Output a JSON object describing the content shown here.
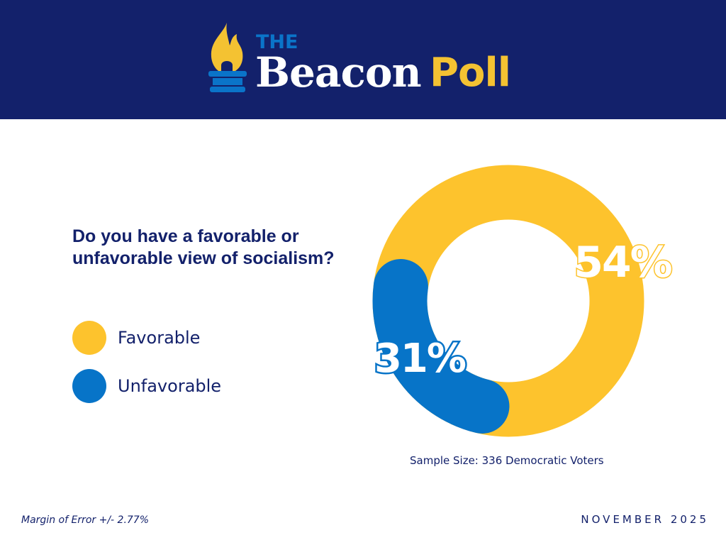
{
  "header": {
    "logo_the": "THE",
    "logo_beacon": "Beacon",
    "logo_poll": "Poll"
  },
  "colors": {
    "navy": "#13216b",
    "yellow": "#fdc32d",
    "blue": "#0774c8"
  },
  "chart_data": {
    "type": "pie",
    "title": "Do you have a favorable or unfavorable view of socialism?",
    "series": [
      {
        "name": "Favorable",
        "value": 54,
        "label": "54%",
        "color": "#fdc32d"
      },
      {
        "name": "Unfavorable",
        "value": 31,
        "label": "31%",
        "color": "#0774c8"
      }
    ],
    "legend": "left"
  },
  "footer": {
    "sample": "Sample Size: 336 Democratic Voters",
    "moe": "Margin of Error +/- 2.77%",
    "date": "NOVEMBER 2025"
  }
}
